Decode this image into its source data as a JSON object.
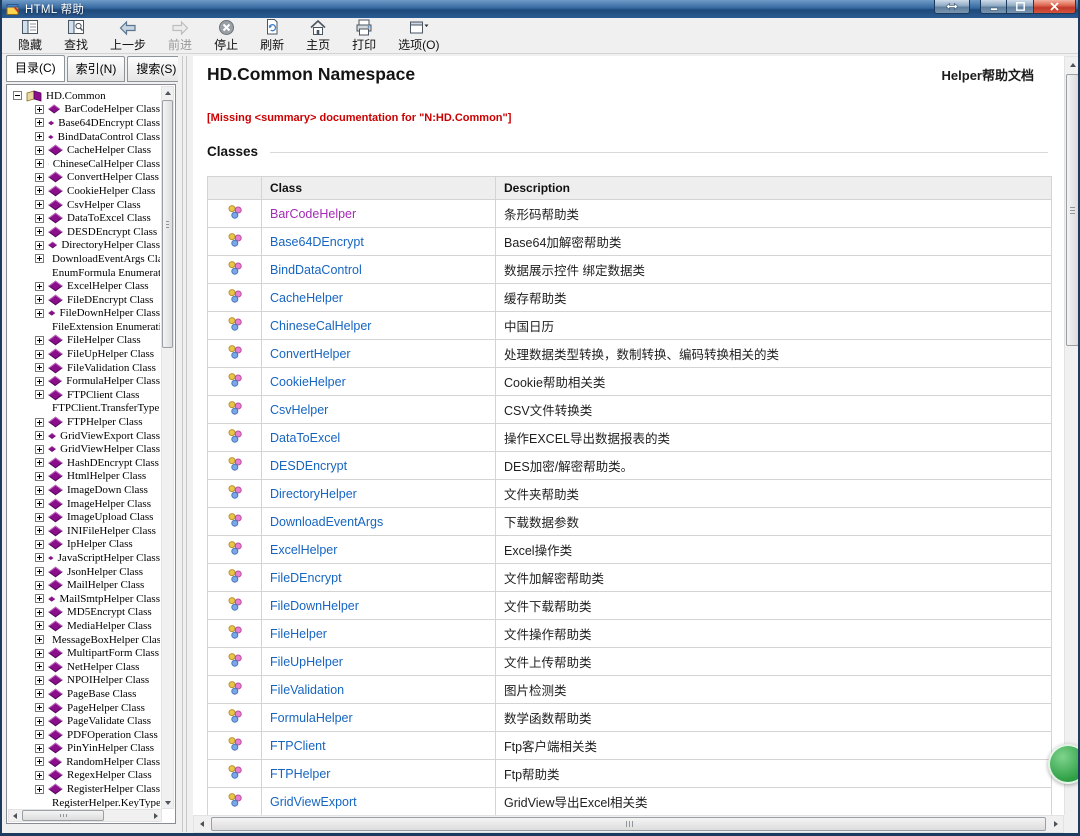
{
  "window": {
    "title": "HTML 帮助"
  },
  "toolbar": {
    "hide_label": "隐藏",
    "find_label": "查找",
    "back_label": "上一步",
    "forward_label": "前进",
    "stop_label": "停止",
    "refresh_label": "刷新",
    "home_label": "主页",
    "print_label": "打印",
    "options_label": "选项(O)"
  },
  "sidebar": {
    "tabs": [
      {
        "label": "目录(C)",
        "active": true
      },
      {
        "label": "索引(N)",
        "active": false
      },
      {
        "label": "搜索(S)",
        "active": false
      }
    ],
    "tree": {
      "root": "HD.Common",
      "items": [
        {
          "label": "BarCodeHelper Class",
          "kind": "class"
        },
        {
          "label": "Base64DEncrypt Class",
          "kind": "class"
        },
        {
          "label": "BindDataControl Class",
          "kind": "class"
        },
        {
          "label": "CacheHelper Class",
          "kind": "class"
        },
        {
          "label": "ChineseCalHelper Class",
          "kind": "class"
        },
        {
          "label": "ConvertHelper Class",
          "kind": "class"
        },
        {
          "label": "CookieHelper Class",
          "kind": "class"
        },
        {
          "label": "CsvHelper Class",
          "kind": "class"
        },
        {
          "label": "DataToExcel Class",
          "kind": "class"
        },
        {
          "label": "DESDEncrypt Class",
          "kind": "class"
        },
        {
          "label": "DirectoryHelper Class",
          "kind": "class"
        },
        {
          "label": "DownloadEventArgs Class",
          "kind": "class"
        },
        {
          "label": "EnumFormula Enumeration",
          "kind": "enum"
        },
        {
          "label": "ExcelHelper Class",
          "kind": "class"
        },
        {
          "label": "FileDEncrypt Class",
          "kind": "class"
        },
        {
          "label": "FileDownHelper Class",
          "kind": "class"
        },
        {
          "label": "FileExtension Enumeration",
          "kind": "enum"
        },
        {
          "label": "FileHelper Class",
          "kind": "class"
        },
        {
          "label": "FileUpHelper Class",
          "kind": "class"
        },
        {
          "label": "FileValidation Class",
          "kind": "class"
        },
        {
          "label": "FormulaHelper Class",
          "kind": "class"
        },
        {
          "label": "FTPClient Class",
          "kind": "class"
        },
        {
          "label": "FTPClient.TransferType Enumeration",
          "kind": "enum"
        },
        {
          "label": "FTPHelper Class",
          "kind": "class"
        },
        {
          "label": "GridViewExport Class",
          "kind": "class"
        },
        {
          "label": "GridViewHelper Class",
          "kind": "class"
        },
        {
          "label": "HashDEncrypt Class",
          "kind": "class"
        },
        {
          "label": "HtmlHelper Class",
          "kind": "class"
        },
        {
          "label": "ImageDown Class",
          "kind": "class"
        },
        {
          "label": "ImageHelper Class",
          "kind": "class"
        },
        {
          "label": "ImageUpload Class",
          "kind": "class"
        },
        {
          "label": "INIFileHelper Class",
          "kind": "class"
        },
        {
          "label": "IpHelper Class",
          "kind": "class"
        },
        {
          "label": "JavaScriptHelper Class",
          "kind": "class"
        },
        {
          "label": "JsonHelper Class",
          "kind": "class"
        },
        {
          "label": "MailHelper Class",
          "kind": "class"
        },
        {
          "label": "MailSmtpHelper Class",
          "kind": "class"
        },
        {
          "label": "MD5Encrypt Class",
          "kind": "class"
        },
        {
          "label": "MediaHelper Class",
          "kind": "class"
        },
        {
          "label": "MessageBoxHelper Class",
          "kind": "class"
        },
        {
          "label": "MultipartForm Class",
          "kind": "class"
        },
        {
          "label": "NetHelper Class",
          "kind": "class"
        },
        {
          "label": "NPOIHelper Class",
          "kind": "class"
        },
        {
          "label": "PageBase Class",
          "kind": "class"
        },
        {
          "label": "PageHelper Class",
          "kind": "class"
        },
        {
          "label": "PageValidate Class",
          "kind": "class"
        },
        {
          "label": "PDFOperation Class",
          "kind": "class"
        },
        {
          "label": "PinYinHelper Class",
          "kind": "class"
        },
        {
          "label": "RandomHelper Class",
          "kind": "class"
        },
        {
          "label": "RegexHelper Class",
          "kind": "class"
        },
        {
          "label": "RegisterHelper Class",
          "kind": "class"
        },
        {
          "label": "RegisterHelper.KeyType Enumeration",
          "kind": "enum"
        }
      ]
    }
  },
  "content": {
    "title": "HD.Common Namespace",
    "header_right": "Helper帮助文档",
    "missing_summary": "[Missing <summary> documentation for \"N:HD.Common\"]",
    "section_title": "Classes",
    "table": {
      "col_class": "Class",
      "col_description": "Description",
      "rows": [
        {
          "class": "BarCodeHelper",
          "description": "条形码帮助类",
          "visited": true
        },
        {
          "class": "Base64DEncrypt",
          "description": "Base64加解密帮助类",
          "visited": false
        },
        {
          "class": "BindDataControl",
          "description": "数据展示控件 绑定数据类",
          "visited": false
        },
        {
          "class": "CacheHelper",
          "description": "缓存帮助类",
          "visited": false
        },
        {
          "class": "ChineseCalHelper",
          "description": "中国日历",
          "visited": false
        },
        {
          "class": "ConvertHelper",
          "description": "处理数据类型转换，数制转换、编码转换相关的类",
          "visited": false
        },
        {
          "class": "CookieHelper",
          "description": "Cookie帮助相关类",
          "visited": false
        },
        {
          "class": "CsvHelper",
          "description": "CSV文件转换类",
          "visited": false
        },
        {
          "class": "DataToExcel",
          "description": "操作EXCEL导出数据报表的类",
          "visited": false
        },
        {
          "class": "DESDEncrypt",
          "description": "DES加密/解密帮助类。",
          "visited": false
        },
        {
          "class": "DirectoryHelper",
          "description": "文件夹帮助类",
          "visited": false
        },
        {
          "class": "DownloadEventArgs",
          "description": "下载数据参数",
          "visited": false
        },
        {
          "class": "ExcelHelper",
          "description": "Excel操作类",
          "visited": false
        },
        {
          "class": "FileDEncrypt",
          "description": "文件加解密帮助类",
          "visited": false
        },
        {
          "class": "FileDownHelper",
          "description": "文件下载帮助类",
          "visited": false
        },
        {
          "class": "FileHelper",
          "description": "文件操作帮助类",
          "visited": false
        },
        {
          "class": "FileUpHelper",
          "description": "文件上传帮助类",
          "visited": false
        },
        {
          "class": "FileValidation",
          "description": "图片检测类",
          "visited": false
        },
        {
          "class": "FormulaHelper",
          "description": "数学函数帮助类",
          "visited": false
        },
        {
          "class": "FTPClient",
          "description": "Ftp客户端相关类",
          "visited": false
        },
        {
          "class": "FTPHelper",
          "description": "Ftp帮助类",
          "visited": false
        },
        {
          "class": "GridViewExport",
          "description": "GridView导出Excel相关类",
          "visited": false
        }
      ]
    }
  },
  "colors": {
    "link_blue": "#1665c1",
    "link_visited_purple": "#a42bb5",
    "missing_red": "#cc0000",
    "titlebar_blue": "#35689f",
    "badge_green": "#2e9e44",
    "tree_book_purple": "#8b0f8b"
  }
}
